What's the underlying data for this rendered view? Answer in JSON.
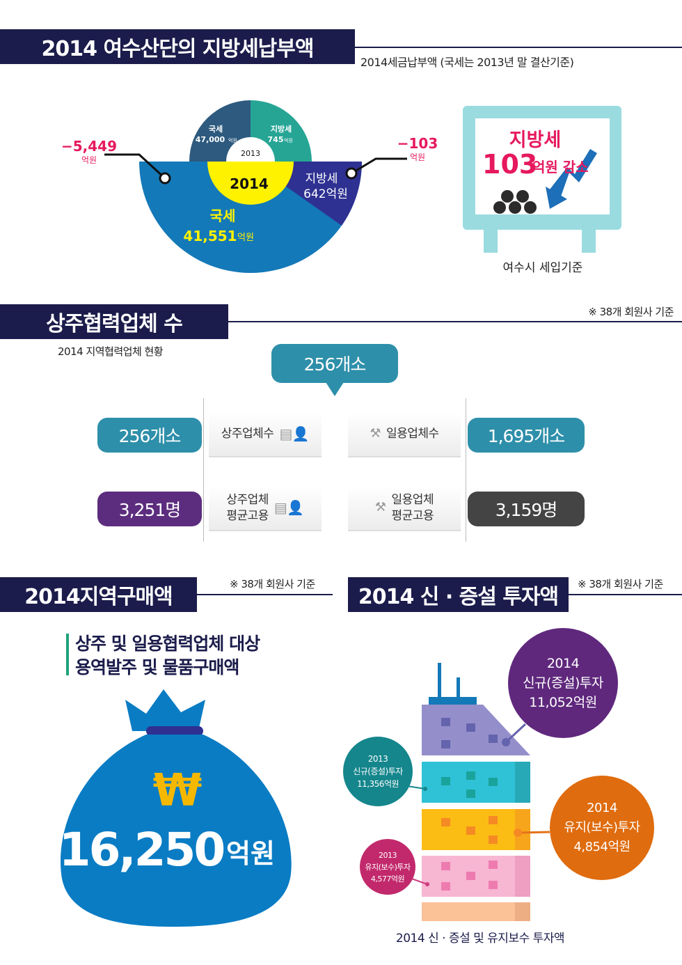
{
  "section1": {
    "title": "2014 여수산단의 지방세납부액",
    "subtitle": "2014세금납부액 (국세는 2013년 말 결산기준)",
    "chart": {
      "year_2013": "2013",
      "year_2014": "2014",
      "national_2013_label": "국세",
      "national_2013_value": "47,000",
      "local_2013_label": "지방세",
      "local_2013_value": "745",
      "national_2014_label": "국세",
      "national_2014_value": "41,551",
      "local_2014_label": "지방세",
      "local_2014_value": "642억원",
      "unit": "억원",
      "national_change": "−5,449",
      "local_change": "−103",
      "colors": {
        "national_2013": "#2d5a7e",
        "local_2013": "#26a595",
        "national_2014": "#1479b8",
        "local_2014": "#2e3192",
        "center_2014": "#fff200",
        "change": "#e6195e"
      }
    },
    "monitor": {
      "line1": "지방세",
      "amount": "103",
      "amount_suffix": "억원 감소",
      "caption": "여수시 세입기준"
    }
  },
  "section2": {
    "title": "상주협력업체 수",
    "note": "※ 38개 회원사 기준",
    "subtitle": "2014 지역협력업체 현황",
    "total": "256개소",
    "resident_count": "256개소",
    "resident_count_label": "상주업체수",
    "daily_count": "1,695개소",
    "daily_count_label": "일용업체수",
    "resident_employ": "3,251명",
    "resident_employ_label1": "상주업체",
    "resident_employ_label2": "평균고용",
    "daily_employ": "3,159명",
    "daily_employ_label1": "일용업체",
    "daily_employ_label2": "평균고용"
  },
  "section3": {
    "title": "2014지역구매액",
    "note": "※ 38개 회원사 기준",
    "desc1": "상주 및 일용협력업체 대상",
    "desc2": "용역발주 및 물품구매액",
    "currency_symbol": "₩",
    "amount": "16,250",
    "unit": "억원"
  },
  "section4": {
    "title": "2014 신 · 증설 투자액",
    "note": "※ 38개 회원사 기준",
    "caption": "2014 신 · 증설 및 유지보수 투자액",
    "new_2014": {
      "year": "2014",
      "label": "신규(증설)투자",
      "value": "11,052억원"
    },
    "new_2013": {
      "year": "2013",
      "label": "신규(증설)투자",
      "value": "11,356억원"
    },
    "maint_2014": {
      "year": "2014",
      "label": "유지(보수)투자",
      "value": "4,854억원"
    },
    "maint_2013": {
      "year": "2013",
      "label": "유지(보수)투자",
      "value": "4,577억원"
    }
  }
}
